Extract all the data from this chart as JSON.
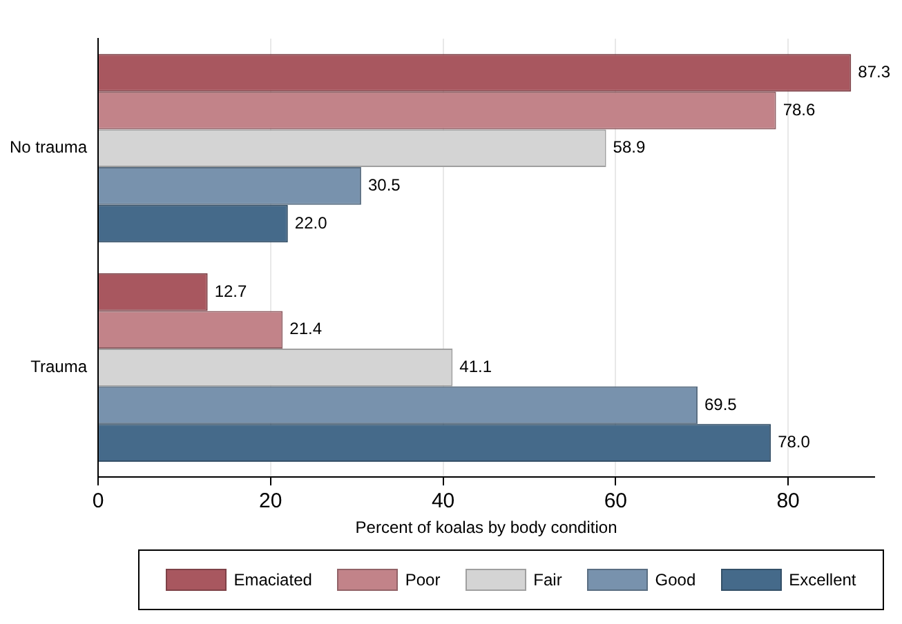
{
  "chart_data": {
    "type": "bar",
    "orientation": "horizontal",
    "xlabel": "Percent of koalas by body condition",
    "categories": [
      "No trauma",
      "Trauma"
    ],
    "series": [
      {
        "name": "Emaciated",
        "color": "#a8575f",
        "values": [
          87.3,
          12.7
        ],
        "value_labels": [
          "87.3",
          "12.7"
        ]
      },
      {
        "name": "Poor",
        "color": "#c28389",
        "values": [
          78.6,
          21.4
        ],
        "value_labels": [
          "78.6",
          "21.4"
        ]
      },
      {
        "name": "Fair",
        "color": "#d4d4d4",
        "values": [
          58.9,
          41.1
        ],
        "value_labels": [
          "58.9",
          "41.1"
        ]
      },
      {
        "name": "Good",
        "color": "#7892ad",
        "values": [
          30.5,
          69.5
        ],
        "value_labels": [
          "30.5",
          "69.5"
        ]
      },
      {
        "name": "Excellent",
        "color": "#456a8a",
        "values": [
          22.0,
          78.0
        ],
        "value_labels": [
          "22.0",
          "78.0"
        ]
      }
    ],
    "xlim": [
      0,
      90
    ],
    "xticks": [
      0,
      20,
      40,
      60,
      80
    ],
    "grid": "x",
    "legend": "bottom"
  }
}
